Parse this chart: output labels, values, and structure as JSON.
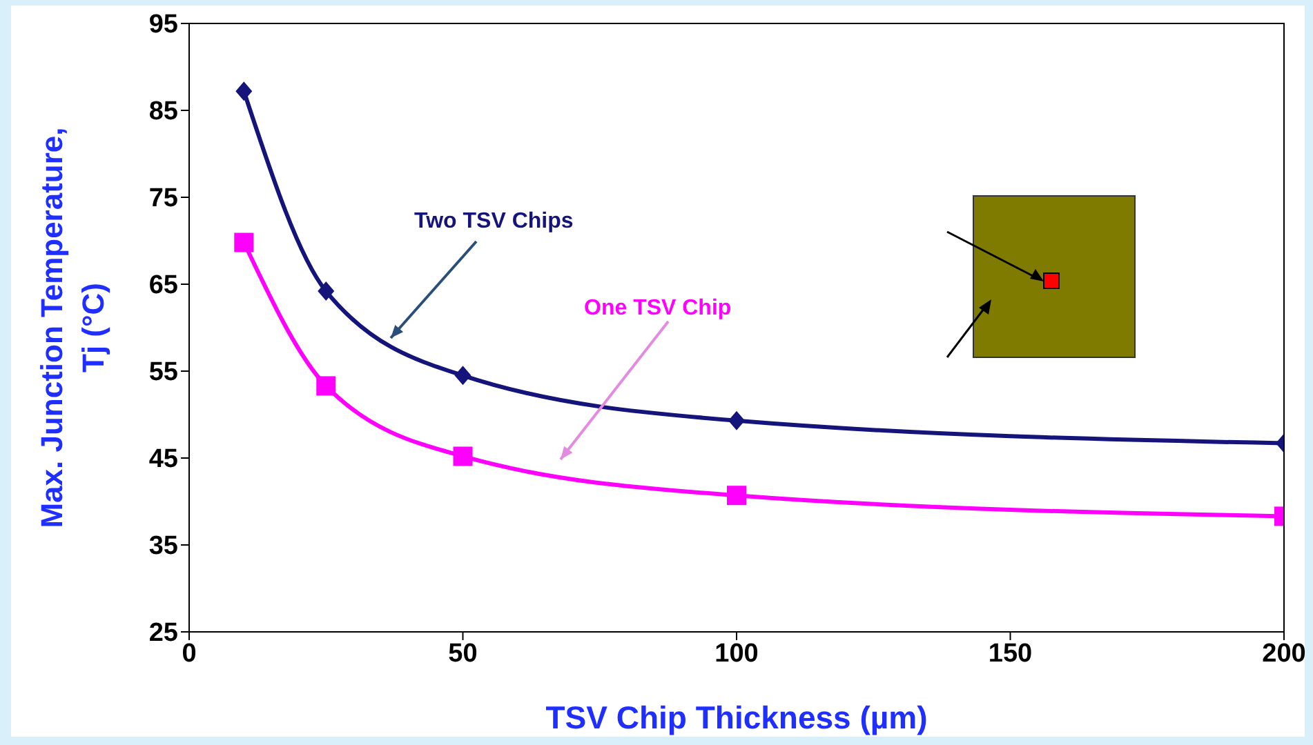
{
  "chart_data": {
    "type": "line",
    "xlabel": "TSV Chip Thickness (µm)",
    "ylabel": "Max. Junction Temperature,\nTj  (°C)",
    "xlim": [
      0,
      200
    ],
    "xticks": [
      0,
      50,
      100,
      150,
      200
    ],
    "ylim": [
      25,
      95
    ],
    "yticks": [
      25,
      35,
      45,
      55,
      65,
      75,
      85,
      95
    ],
    "grid": false,
    "legend": false,
    "x": [
      10,
      25,
      50,
      100,
      200
    ],
    "series": [
      {
        "name": "Two TSV Chips",
        "color": "#14147a",
        "marker": "diamond",
        "values": [
          87.2,
          64.2,
          54.5,
          49.3,
          46.7
        ]
      },
      {
        "name": "One TSV Chip",
        "color": "#ff00ff",
        "marker": "square",
        "values": [
          69.8,
          53.3,
          45.2,
          40.7,
          38.3
        ]
      }
    ]
  }
}
